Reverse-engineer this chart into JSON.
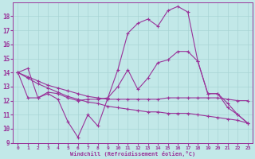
{
  "xlabel": "Windchill (Refroidissement éolien,°C)",
  "bg_color": "#c2e8e8",
  "line_color": "#993399",
  "grid_color": "#a8d4d4",
  "xlim": [
    -0.5,
    23.5
  ],
  "ylim": [
    9,
    19
  ],
  "yticks": [
    9,
    10,
    11,
    12,
    13,
    14,
    15,
    16,
    17,
    18
  ],
  "xticks": [
    0,
    1,
    2,
    3,
    4,
    5,
    6,
    7,
    8,
    9,
    10,
    11,
    12,
    13,
    14,
    15,
    16,
    17,
    18,
    19,
    20,
    21,
    22,
    23
  ],
  "series": [
    [
      14.0,
      14.3,
      12.2,
      12.5,
      12.1,
      10.5,
      9.4,
      11.0,
      10.2,
      12.2,
      14.2,
      16.8,
      17.5,
      17.8,
      17.3,
      18.4,
      18.7,
      18.3,
      14.8,
      12.5,
      12.5,
      11.8,
      11.0,
      10.4
    ],
    [
      14.0,
      13.7,
      13.4,
      13.1,
      12.9,
      12.7,
      12.5,
      12.3,
      12.2,
      12.1,
      12.1,
      12.1,
      12.1,
      12.1,
      12.1,
      12.2,
      12.2,
      12.2,
      12.2,
      12.2,
      12.2,
      12.1,
      12.0,
      12.0
    ],
    [
      14.0,
      12.2,
      12.2,
      12.6,
      12.5,
      12.2,
      12.0,
      12.1,
      12.1,
      12.2,
      13.0,
      14.2,
      12.8,
      13.6,
      14.7,
      14.9,
      15.5,
      15.5,
      14.8,
      12.5,
      12.5,
      11.5,
      11.0,
      10.4
    ],
    [
      14.0,
      13.6,
      13.2,
      12.9,
      12.6,
      12.3,
      12.1,
      11.9,
      11.8,
      11.6,
      11.5,
      11.4,
      11.3,
      11.2,
      11.2,
      11.1,
      11.1,
      11.1,
      11.0,
      10.9,
      10.8,
      10.7,
      10.6,
      10.4
    ]
  ]
}
